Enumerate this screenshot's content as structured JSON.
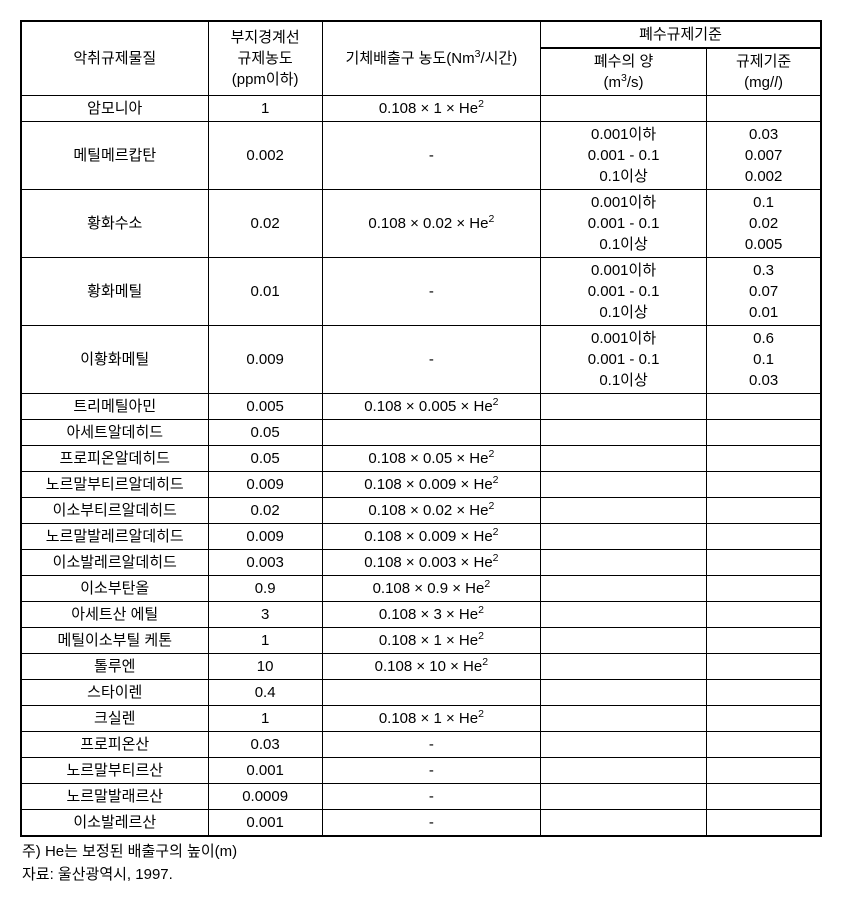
{
  "table": {
    "header": {
      "substance": "악취규제물질",
      "boundary": "부지경계선\n규제농도\n(ppm이하)",
      "gas": "기체배출구\n농도(Nm",
      "gas_sup": "3",
      "gas_tail": "/시간)",
      "waste_group": "폐수규제기준",
      "waste_amt": "폐수의 양\n(m",
      "waste_amt_sup": "3",
      "waste_amt_tail": "/s)",
      "waste_std": "규제기준\n(mg/𝑙)"
    },
    "rows": [
      {
        "name": "암모니아",
        "ppm": "1",
        "gas": "0.108 × 1 × He",
        "sup": "2",
        "waste": "",
        "std": ""
      },
      {
        "name": "메틸메르캅탄",
        "ppm": "0.002",
        "gas": "-",
        "sup": "",
        "waste": "0.001이하\n0.001 - 0.1\n0.1이상",
        "std": "0.03\n0.007\n0.002"
      },
      {
        "name": "황화수소",
        "ppm": "0.02",
        "gas": "0.108 × 0.02 × He",
        "sup": "2",
        "waste": "0.001이하\n0.001 - 0.1\n0.1이상",
        "std": "0.1\n0.02\n0.005"
      },
      {
        "name": "황화메틸",
        "ppm": "0.01",
        "gas": "-",
        "sup": "",
        "waste": "0.001이하\n0.001 - 0.1\n0.1이상",
        "std": "0.3\n0.07\n0.01"
      },
      {
        "name": "이황화메틸",
        "ppm": "0.009",
        "gas": "-",
        "sup": "",
        "waste": "0.001이하\n0.001 - 0.1\n0.1이상",
        "std": "0.6\n0.1\n0.03"
      },
      {
        "name": "트리메틸아민",
        "ppm": "0.005",
        "gas": "0.108 × 0.005 × He",
        "sup": "2",
        "waste": "",
        "std": ""
      },
      {
        "name": "아세트알데히드",
        "ppm": "0.05",
        "gas": "",
        "sup": "",
        "waste": "",
        "std": ""
      },
      {
        "name": "프로피온알데히드",
        "ppm": "0.05",
        "gas": "0.108 × 0.05 × He",
        "sup": "2",
        "waste": "",
        "std": ""
      },
      {
        "name": "노르말부티르알데히드",
        "ppm": "0.009",
        "gas": "0.108 × 0.009 × He",
        "sup": "2",
        "waste": "",
        "std": ""
      },
      {
        "name": "이소부티르알데히드",
        "ppm": "0.02",
        "gas": "0.108 × 0.02 × He",
        "sup": "2",
        "waste": "",
        "std": ""
      },
      {
        "name": "노르말발레르알데히드",
        "ppm": "0.009",
        "gas": "0.108 × 0.009 × He",
        "sup": "2",
        "waste": "",
        "std": ""
      },
      {
        "name": "이소발레르알데히드",
        "ppm": "0.003",
        "gas": "0.108 × 0.003 × He",
        "sup": "2",
        "waste": "",
        "std": ""
      },
      {
        "name": "이소부탄올",
        "ppm": "0.9",
        "gas": "0.108 × 0.9 × He",
        "sup": "2",
        "waste": "",
        "std": ""
      },
      {
        "name": "아세트산 에틸",
        "ppm": "3",
        "gas": "0.108 × 3 × He",
        "sup": "2",
        "waste": "",
        "std": ""
      },
      {
        "name": "메틸이소부틸 케톤",
        "ppm": "1",
        "gas": "0.108 × 1 × He",
        "sup": "2",
        "waste": "",
        "std": ""
      },
      {
        "name": "톨루엔",
        "ppm": "10",
        "gas": "0.108 × 10 × He",
        "sup": "2",
        "waste": "",
        "std": ""
      },
      {
        "name": "스타이렌",
        "ppm": "0.4",
        "gas": "",
        "sup": "",
        "waste": "",
        "std": ""
      },
      {
        "name": "크실렌",
        "ppm": "1",
        "gas": "0.108 × 1 × He",
        "sup": "2",
        "waste": "",
        "std": ""
      },
      {
        "name": "프로피온산",
        "ppm": "0.03",
        "gas": "-",
        "sup": "",
        "waste": "",
        "std": ""
      },
      {
        "name": "노르말부티르산",
        "ppm": "0.001",
        "gas": "-",
        "sup": "",
        "waste": "",
        "std": ""
      },
      {
        "name": "노르말발래르산",
        "ppm": "0.0009",
        "gas": "-",
        "sup": "",
        "waste": "",
        "std": ""
      },
      {
        "name": "이소발레르산",
        "ppm": "0.001",
        "gas": "-",
        "sup": "",
        "waste": "",
        "std": ""
      }
    ]
  },
  "footnote1": "주) He는 보정된 배출구의 높이(m)",
  "footnote2": "자료: 울산광역시, 1997."
}
